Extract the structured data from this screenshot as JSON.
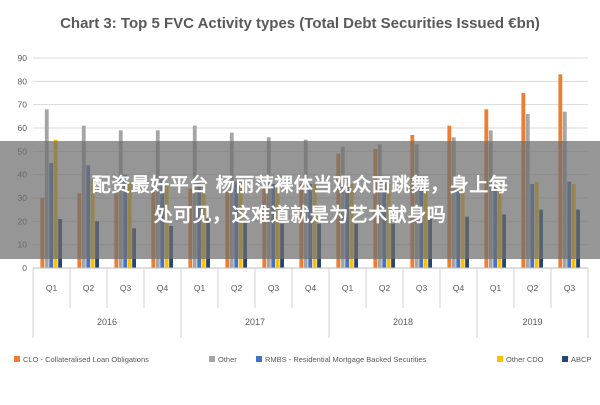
{
  "chart_data": {
    "type": "bar",
    "title": "Chart 3: Top 5 FVC Activity types (Total Debt Securities Issued €bn)",
    "xlabel": "",
    "ylabel": "",
    "ylim": [
      0,
      90
    ],
    "yticks": [
      0,
      10,
      20,
      30,
      40,
      50,
      60,
      70,
      80,
      90
    ],
    "grid": true,
    "legend_position": "bottom",
    "categories": [
      "Q1",
      "Q2",
      "Q3",
      "Q4",
      "Q1",
      "Q2",
      "Q3",
      "Q4",
      "Q1",
      "Q2",
      "Q3",
      "Q4",
      "Q1",
      "Q2",
      "Q3"
    ],
    "groups": [
      {
        "label": "2016",
        "count": 4
      },
      {
        "label": "2017",
        "count": 4
      },
      {
        "label": "2018",
        "count": 4
      },
      {
        "label": "2019",
        "count": 3
      }
    ],
    "series": [
      {
        "name": "CLO - Collateralised Loan Obligations",
        "color": "#ED7D31",
        "values": [
          30,
          32,
          32,
          34,
          34,
          33,
          34,
          36,
          49,
          51,
          57,
          61,
          68,
          75,
          83
        ]
      },
      {
        "name": "Other",
        "color": "#A5A5A5",
        "values": [
          68,
          61,
          59,
          59,
          61,
          58,
          56,
          55,
          52,
          53,
          53,
          56,
          59,
          66,
          67
        ]
      },
      {
        "name": "RMBS - Residential Mortgage Backed Securities",
        "color": "#4472C4",
        "values": [
          45,
          44,
          40,
          38,
          37,
          37,
          36,
          36,
          35,
          36,
          35,
          34,
          35,
          36,
          37
        ]
      },
      {
        "name": "Other CDO",
        "color": "#FFC000",
        "values": [
          55,
          38,
          37,
          36,
          38,
          37,
          36,
          36,
          36,
          36,
          35,
          34,
          36,
          37,
          36
        ]
      },
      {
        "name": "ABCP",
        "color": "#264478",
        "values": [
          21,
          20,
          17,
          18,
          21,
          20,
          19,
          19,
          19,
          19,
          21,
          22,
          23,
          25,
          25
        ]
      }
    ]
  },
  "overlay": {
    "line1": "配资最好平台 杨丽萍裸体当观众面跳舞，身上每",
    "line2": "处可见，这难道就是为艺术献身吗"
  }
}
